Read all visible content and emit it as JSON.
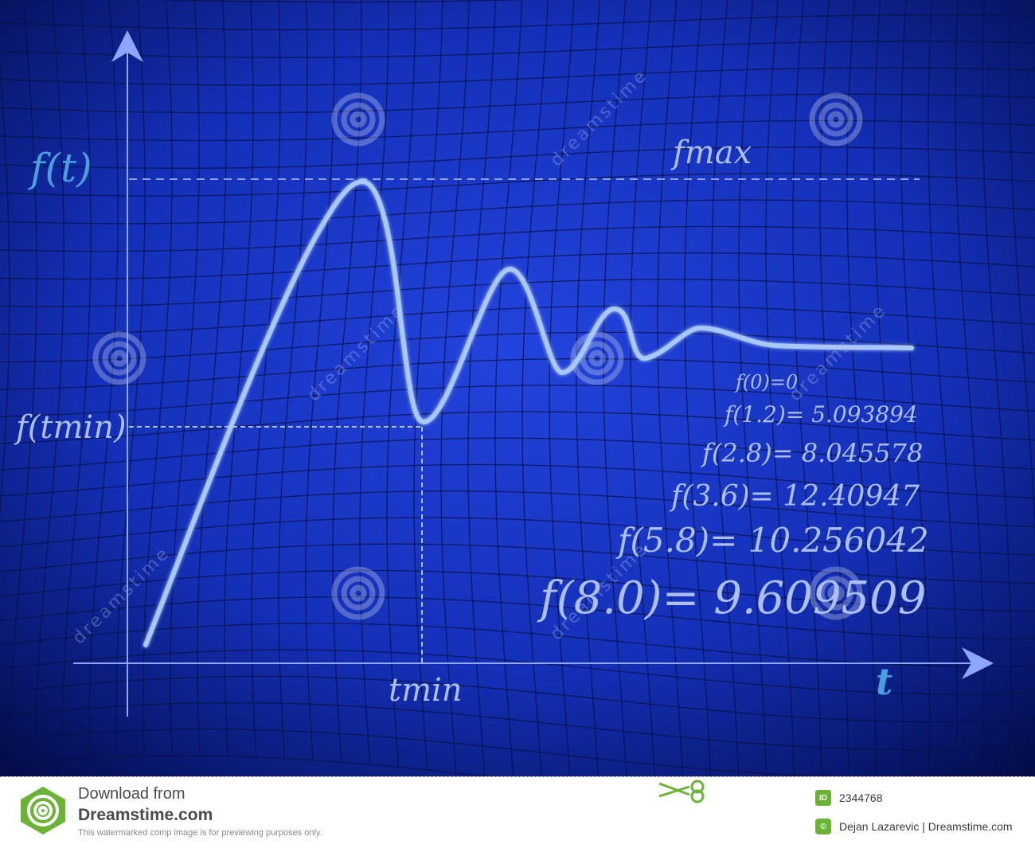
{
  "diagram": {
    "y_axis_label": "f(t)",
    "x_axis_label": "t",
    "fmax_label": "fmax",
    "ftmin_label": "f(tmin)",
    "tmin_label": "tmin",
    "equations": [
      "f(0)=0",
      "f(1.2)= 5.093894",
      "f(2.8)= 8.045578",
      "f(3.6)=  12.40947",
      "f(5.8)= 10.256042",
      "f(8.0)= 9.609509"
    ],
    "colors": {
      "background_center": "#1f3fd6",
      "background_edge": "#02093e",
      "grid": "#0a1240",
      "curve": "#9ec3ff",
      "axis": "#8fa6ff",
      "label_blue": "#4a9fe0",
      "text_light": "#aebff3"
    }
  },
  "watermark": {
    "text": "dreamstime"
  },
  "footer": {
    "download_from": "Download from",
    "site": "Dreamstime.com",
    "note": "This watermarked comp image is for previewing purposes only.",
    "id_badge": "ID",
    "image_id": "2344768",
    "credit": "Dejan Lazarevic | Dreamstime.com",
    "colors": {
      "badge": "#6ab334",
      "text": "#4a4a4a"
    }
  }
}
